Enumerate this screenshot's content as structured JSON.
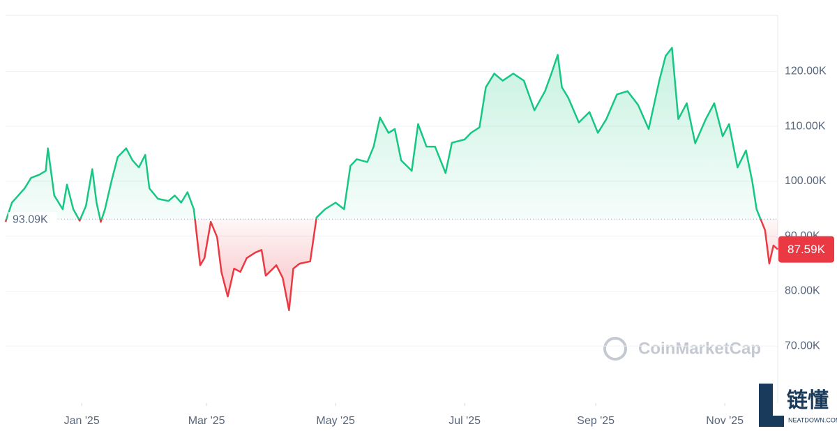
{
  "chart_data": {
    "type": "line",
    "x": [
      -36,
      -33,
      -30,
      -27,
      -24,
      -20,
      -17,
      -16,
      -13,
      -9,
      -7,
      -4,
      -1,
      2,
      5,
      7,
      9,
      11,
      14,
      17,
      21,
      24,
      27,
      30,
      32,
      36,
      41,
      44,
      47,
      50,
      53,
      56,
      58,
      61,
      64,
      66,
      69,
      72,
      75,
      78,
      82,
      85,
      87,
      92,
      95,
      98,
      100,
      103,
      108,
      111,
      115,
      120,
      124,
      127,
      130,
      135,
      138,
      141,
      145,
      148,
      151,
      156,
      159,
      163,
      167,
      172,
      175,
      181,
      184,
      188,
      191,
      195,
      199,
      204,
      209,
      214,
      219,
      222,
      225,
      227,
      230,
      235,
      240,
      244,
      248,
      253,
      258,
      263,
      268,
      273,
      276,
      279,
      282,
      286,
      290,
      295,
      299,
      303,
      306,
      310,
      314,
      317,
      319,
      323,
      325,
      327,
      329
    ],
    "values": [
      92600,
      96100,
      97400,
      98700,
      100600,
      101200,
      101900,
      106000,
      97400,
      94900,
      99400,
      94900,
      92800,
      95500,
      102200,
      96100,
      92600,
      94900,
      99900,
      104400,
      106000,
      103800,
      102500,
      104800,
      98700,
      96800,
      96400,
      97400,
      96100,
      98000,
      94900,
      84700,
      86000,
      92600,
      89800,
      83500,
      79000,
      84100,
      83500,
      86000,
      87000,
      87500,
      82800,
      84700,
      82400,
      76500,
      84100,
      85000,
      85400,
      93400,
      94900,
      96100,
      94900,
      102800,
      104000,
      103500,
      106300,
      111600,
      108800,
      109500,
      103800,
      101900,
      110400,
      106300,
      106300,
      101500,
      107000,
      107600,
      108800,
      109800,
      117100,
      119600,
      118300,
      119600,
      118300,
      112900,
      116400,
      119600,
      123000,
      117100,
      115200,
      110700,
      112600,
      108800,
      111300,
      115800,
      116400,
      113900,
      109500,
      118300,
      122800,
      124300,
      111300,
      114200,
      106900,
      111300,
      114200,
      108200,
      110400,
      102500,
      105600,
      99900,
      94900,
      91100,
      85000,
      88300,
      87590
    ],
    "up_color": "#16c784",
    "down_color": "#ea3943",
    "baseline": {
      "value": 93090,
      "label": "93.09K"
    },
    "current": {
      "value": 87590,
      "label": "87.59K"
    },
    "xlim": [
      -36,
      329
    ],
    "xticks": [
      {
        "value": 0,
        "label": "Jan '25"
      },
      {
        "value": 59,
        "label": "Mar '25"
      },
      {
        "value": 120,
        "label": "May '25"
      },
      {
        "value": 181,
        "label": "Jul '25"
      },
      {
        "value": 243,
        "label": "Sep '25"
      },
      {
        "value": 304,
        "label": "Nov '25"
      }
    ],
    "ylim": [
      59600,
      130200
    ],
    "yticks": [
      {
        "value": 70000,
        "label": "70.00K"
      },
      {
        "value": 80000,
        "label": "80.00K"
      },
      {
        "value": 90000,
        "label": "90.00K"
      },
      {
        "value": 100000,
        "label": "100.00K"
      },
      {
        "value": 110000,
        "label": "110.00K"
      },
      {
        "value": 120000,
        "label": "120.00K"
      }
    ],
    "grid": true,
    "watermark": "CoinMarketCap"
  },
  "badge": {
    "title": "链懂",
    "subtitle": "NEATDOWN.COM"
  }
}
